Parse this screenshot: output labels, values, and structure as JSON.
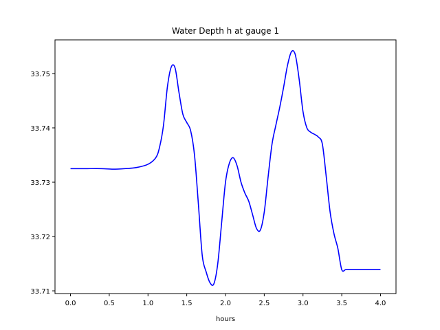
{
  "chart_data": {
    "type": "line",
    "title": "Water Depth h at gauge 1",
    "xlabel": "hours",
    "ylabel": "",
    "xlim": [
      -0.2,
      4.2
    ],
    "ylim": [
      33.7095,
      33.7562
    ],
    "xticks": [
      0.0,
      0.5,
      1.0,
      1.5,
      2.0,
      2.5,
      3.0,
      3.5,
      4.0
    ],
    "xtick_labels": [
      "0.0",
      "0.5",
      "1.0",
      "1.5",
      "2.0",
      "2.5",
      "3.0",
      "3.5",
      "4.0"
    ],
    "yticks": [
      33.71,
      33.72,
      33.73,
      33.74,
      33.75
    ],
    "ytick_labels": [
      "33.71",
      "33.72",
      "33.73",
      "33.74",
      "33.75"
    ],
    "grid": false,
    "series": [
      {
        "color": "#0000ff",
        "x": [
          0.0,
          0.2,
          0.4,
          0.55,
          0.7,
          0.85,
          1.0,
          1.1,
          1.15,
          1.2,
          1.25,
          1.3,
          1.35,
          1.4,
          1.45,
          1.5,
          1.55,
          1.6,
          1.65,
          1.7,
          1.75,
          1.8,
          1.85,
          1.9,
          1.95,
          2.0,
          2.05,
          2.1,
          2.15,
          2.2,
          2.25,
          2.3,
          2.35,
          2.4,
          2.45,
          2.5,
          2.55,
          2.6,
          2.65,
          2.7,
          2.75,
          2.8,
          2.85,
          2.9,
          2.95,
          3.0,
          3.05,
          3.1,
          3.15,
          3.2,
          3.25,
          3.3,
          3.35,
          3.4,
          3.45,
          3.5,
          3.55,
          3.6,
          3.65,
          3.7,
          3.75,
          3.8,
          3.85,
          3.9,
          3.95,
          4.0
        ],
        "y": [
          33.7325,
          33.7325,
          33.7325,
          33.7324,
          33.7325,
          33.7327,
          33.7333,
          33.7345,
          33.7365,
          33.7405,
          33.7475,
          33.7512,
          33.751,
          33.7465,
          33.7425,
          33.741,
          33.7395,
          33.735,
          33.726,
          33.7165,
          33.7135,
          33.7115,
          33.7113,
          33.715,
          33.7225,
          33.73,
          33.7335,
          33.7345,
          33.733,
          33.73,
          33.728,
          33.7265,
          33.724,
          33.7215,
          33.7212,
          33.7245,
          33.731,
          33.737,
          33.7405,
          33.7438,
          33.7475,
          33.7515,
          33.754,
          33.7535,
          33.749,
          33.743,
          33.74,
          33.7392,
          33.7388,
          33.7383,
          33.737,
          33.731,
          33.7245,
          33.7205,
          33.7178,
          33.7139,
          33.7139,
          33.7139,
          33.7139,
          33.7139,
          33.7139,
          33.7139,
          33.7139,
          33.7139,
          33.7139,
          33.7139
        ]
      }
    ]
  }
}
